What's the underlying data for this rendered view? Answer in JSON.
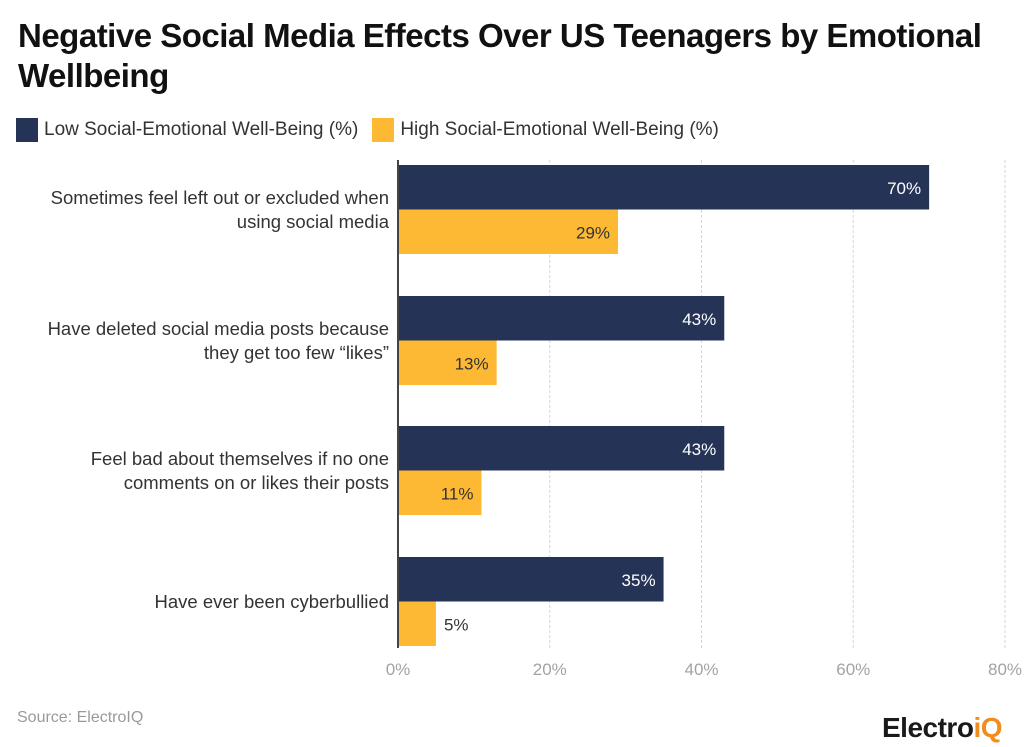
{
  "chart_data": {
    "type": "bar",
    "orientation": "horizontal",
    "title": "Negative Social Media Effects Over US Teenagers by Emotional Wellbeing",
    "categories": [
      [
        "Sometimes feel left out or excluded when",
        "using social media"
      ],
      [
        "Have deleted social media posts because",
        "they get too few “likes”"
      ],
      [
        "Feel bad about themselves if no one",
        "comments on or likes their posts"
      ],
      [
        "Have ever been cyberbullied"
      ]
    ],
    "series": [
      {
        "name": "Low Social-Emotional Well-Being (%)",
        "color": "#243356",
        "label_color": "#ffffff",
        "values": [
          70,
          43,
          43,
          35
        ]
      },
      {
        "name": "High Social-Emotional Well-Being (%)",
        "color": "#FDB933",
        "label_color": "#333333",
        "values": [
          29,
          13,
          11,
          5
        ]
      }
    ],
    "xlim": [
      0,
      80
    ],
    "xticks": [
      0,
      20,
      40,
      60,
      80
    ],
    "xtick_labels": [
      "0%",
      "20%",
      "40%",
      "60%",
      "80%"
    ],
    "value_suffix": "%",
    "grid": "vertical dashed",
    "legend_position": "top-left",
    "xlabel": "",
    "ylabel": ""
  },
  "footer": {
    "source": "Source: ElectroIQ",
    "logo_main": "Electro",
    "logo_accent": "iQ"
  }
}
